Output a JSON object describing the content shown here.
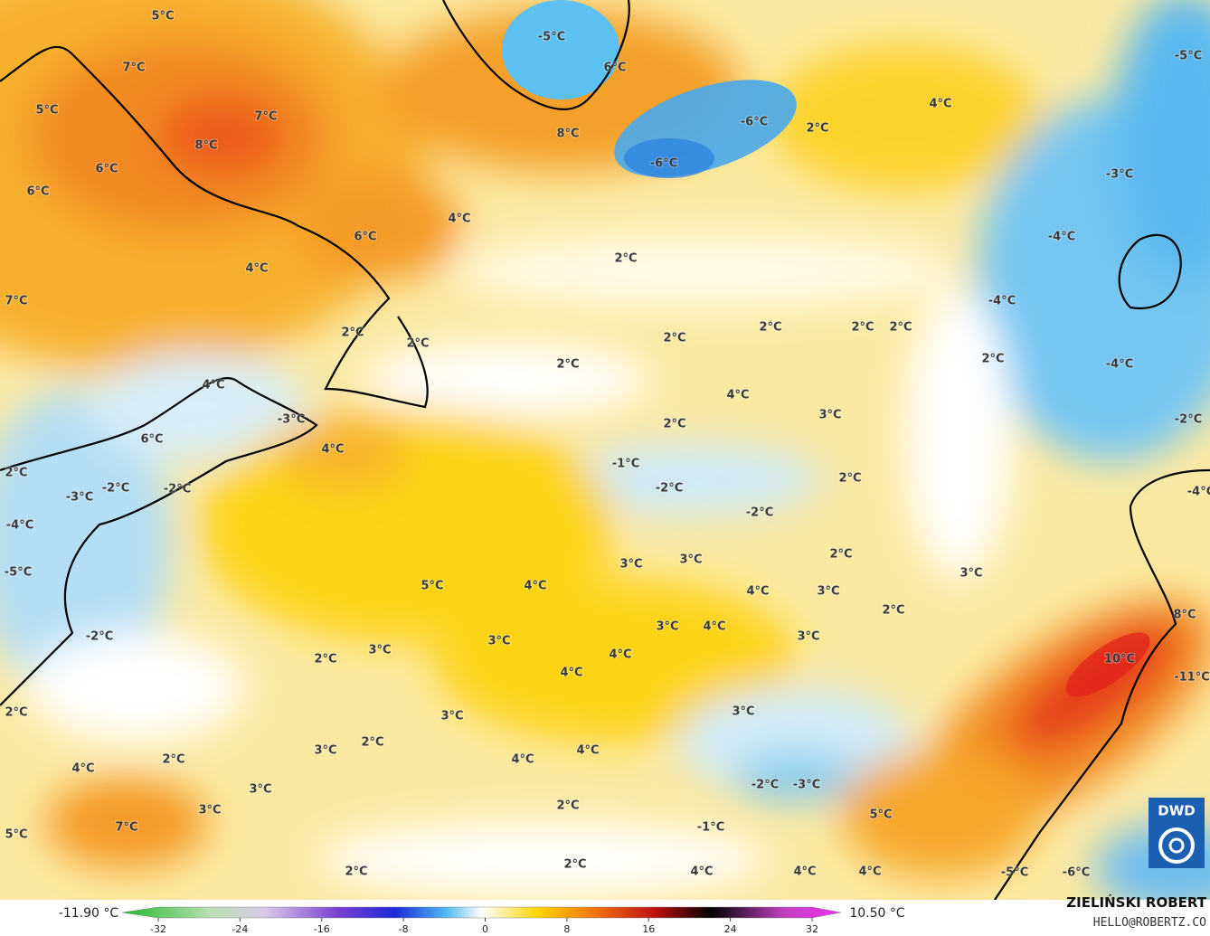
{
  "labels": [
    "5°C",
    "7°C",
    "5°C",
    "6°C",
    "8°C",
    "7°C",
    "6°C",
    "6°C",
    "4°C",
    "7°C",
    "4°C",
    "-5°C",
    "6°C",
    "8°C",
    "-6°C",
    "-6°C",
    "2°C",
    "4°C",
    "-5°C",
    "-3°C",
    "-4°C",
    "-4°C",
    "-4°C",
    "2°C",
    "2°C",
    "2°C",
    "2°C",
    "2°C",
    "2°C",
    "2°C",
    "2°C",
    "2°C",
    "-2°C",
    "4°C",
    "-3°C",
    "6°C",
    "4°C",
    "4°C",
    "3°C",
    "2°C",
    "2°C",
    "-2°C",
    "-3°C",
    "-2°C",
    "-1°C",
    "-2°C",
    "-2°C",
    "2°C",
    "-4°C",
    "-4°C",
    "-5°C",
    "3°C",
    "3°C",
    "2°C",
    "3°C",
    "4°C",
    "5°C",
    "4°C",
    "3°C",
    "2°C",
    "8°C",
    "-2°C",
    "3°C",
    "4°C",
    "3°C",
    "2°C",
    "3°C",
    "3°C",
    "4°C",
    "4°C",
    "10°C",
    "-11°C",
    "2°C",
    "3°C",
    "3°C",
    "2°C",
    "3°C",
    "2°C",
    "4°C",
    "4°C",
    "4°C",
    "3°C",
    "-2°C",
    "-3°C",
    "3°C",
    "2°C",
    "5°C",
    "-1°C",
    "7°C",
    "5°C",
    "2°C",
    "2°C",
    "4°C",
    "4°C",
    "4°C",
    "-5°C",
    "-6°C"
  ],
  "colorbar": {
    "min_label": "-11.90 °C",
    "max_label": "10.50 °C",
    "ticks": [
      -32,
      -24,
      -16,
      -8,
      0,
      8,
      16,
      24,
      32
    ]
  },
  "credits": {
    "author": "ZIELIŃSKI ROBERT",
    "contact": "HELLO@ROBERTZ.CO",
    "logo": "DWD"
  }
}
